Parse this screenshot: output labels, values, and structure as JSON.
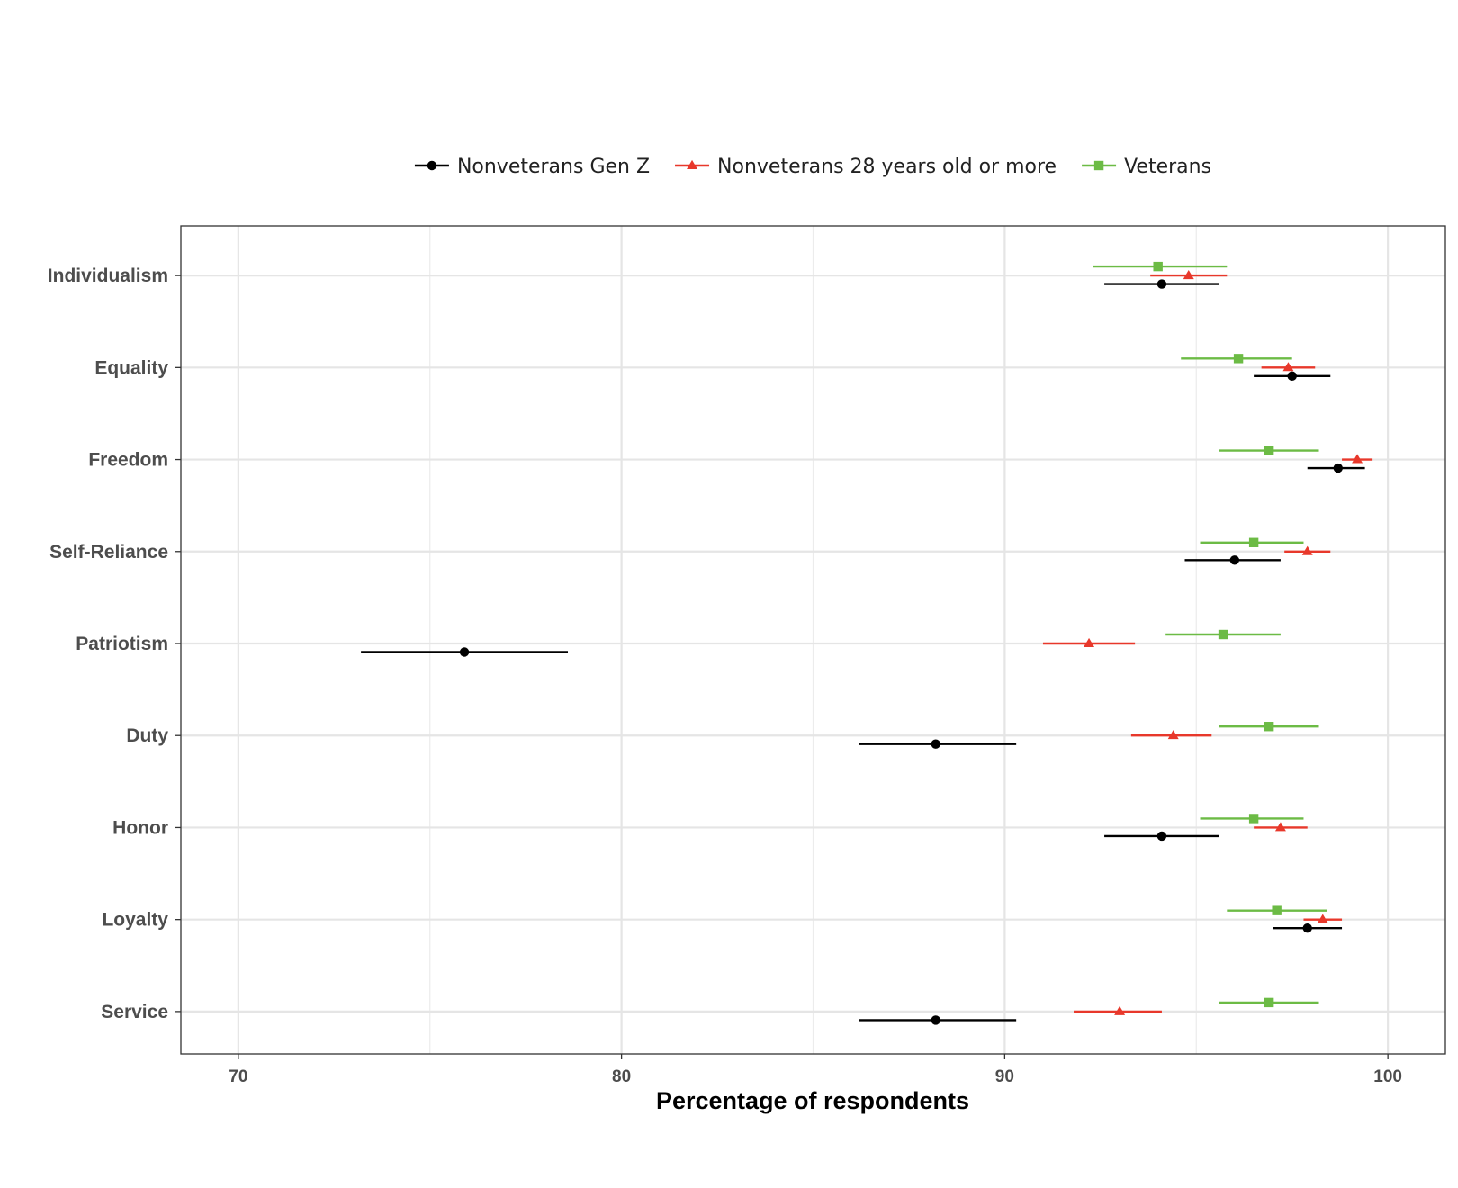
{
  "chart_data": {
    "type": "scatter",
    "subtype": "dot-and-whisker",
    "orientation": "horizontal",
    "xlabel": "Percentage of respondents",
    "ylabel": "",
    "xlim": [
      68.5,
      101.5
    ],
    "xticks": [
      70,
      80,
      90,
      100
    ],
    "grid": true,
    "legend_position": "top",
    "categories": [
      "Individualism",
      "Equality",
      "Freedom",
      "Self-Reliance",
      "Patriotism",
      "Duty",
      "Honor",
      "Loyalty",
      "Service"
    ],
    "series": [
      {
        "name": "Nonveterans Gen Z",
        "color": "#000000",
        "marker": "circle",
        "values": [
          94.1,
          97.5,
          98.7,
          96.0,
          75.9,
          88.2,
          94.1,
          97.9,
          88.2
        ],
        "lower": [
          92.6,
          96.5,
          97.9,
          94.7,
          73.2,
          86.2,
          92.6,
          97.0,
          86.2
        ],
        "upper": [
          95.6,
          98.5,
          99.4,
          97.2,
          78.6,
          90.3,
          95.6,
          98.8,
          90.3
        ]
      },
      {
        "name": "Nonveterans 28 years old or more",
        "color": "#e8382b",
        "marker": "triangle",
        "values": [
          94.8,
          97.4,
          99.2,
          97.9,
          92.2,
          94.4,
          97.2,
          98.3,
          93.0
        ],
        "lower": [
          93.8,
          96.7,
          98.8,
          97.3,
          91.0,
          93.3,
          96.5,
          97.8,
          91.8
        ],
        "upper": [
          95.8,
          98.1,
          99.6,
          98.5,
          93.4,
          95.4,
          97.9,
          98.8,
          94.1
        ]
      },
      {
        "name": "Veterans",
        "color": "#6cbb45",
        "marker": "square",
        "values": [
          94.0,
          96.1,
          96.9,
          96.5,
          95.7,
          96.9,
          96.5,
          97.1,
          96.9
        ],
        "lower": [
          92.3,
          94.6,
          95.6,
          95.1,
          94.2,
          95.6,
          95.1,
          95.8,
          95.6
        ],
        "upper": [
          95.8,
          97.5,
          98.2,
          97.8,
          97.2,
          98.2,
          97.8,
          98.4,
          98.2
        ]
      }
    ]
  }
}
